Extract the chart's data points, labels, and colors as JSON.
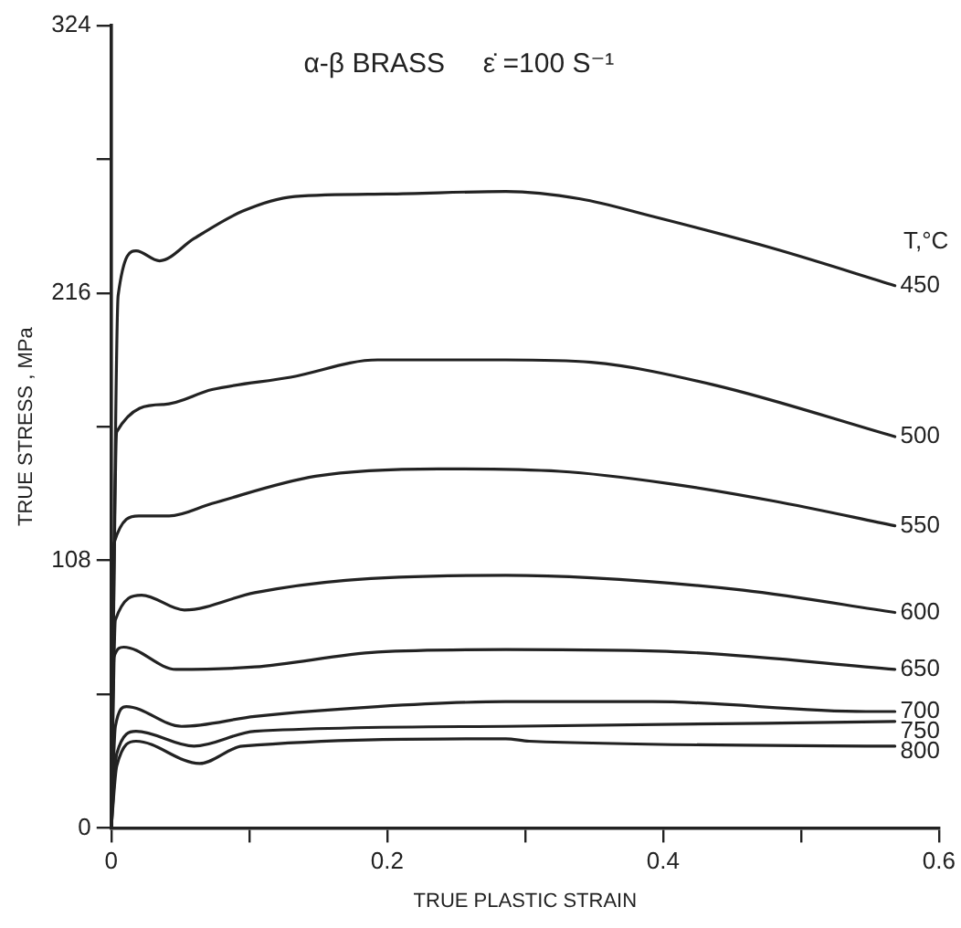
{
  "chart_data": {
    "type": "line",
    "title": "α-β BRASS     ε̇ =100 S⁻¹",
    "xlabel": "TRUE PLASTIC STRAIN",
    "ylabel": "TRUE STRESS , MPa",
    "legend_title": "T,°C",
    "xlim": [
      0,
      0.6
    ],
    "ylim": [
      0,
      324
    ],
    "xticks": [
      0,
      {
        "value": 0.1,
        "label": null
      },
      0.2,
      {
        "value": 0.3,
        "label": null
      },
      0.4,
      {
        "value": 0.5,
        "label": null
      },
      0.6
    ],
    "yticks": [
      0,
      {
        "value": 54,
        "label": null
      },
      108,
      {
        "value": 162,
        "label": null
      },
      216,
      {
        "value": 270,
        "label": null
      },
      324
    ],
    "grid": false,
    "legend": false,
    "marker": "none",
    "line_style": "solid",
    "series": [
      {
        "name": "450",
        "color": "#222222",
        "x": [
          0,
          0.005,
          0.018,
          0.035,
          0.06,
          0.095,
          0.133,
          0.2,
          0.286,
          0.34,
          0.392,
          0.48,
          0.568
        ],
        "values": [
          0,
          215,
          233,
          229,
          238,
          249,
          255,
          256,
          257,
          254,
          247,
          234,
          219
        ]
      },
      {
        "name": "500",
        "color": "#222222",
        "x": [
          0,
          0.004,
          0.038,
          0.073,
          0.13,
          0.193,
          0.286,
          0.348,
          0.436,
          0.568
        ],
        "values": [
          0,
          160,
          171,
          177,
          182,
          189,
          189,
          188,
          179,
          158
        ]
      },
      {
        "name": "550",
        "color": "#222222",
        "x": [
          0,
          0.002,
          0.02,
          0.042,
          0.073,
          0.148,
          0.237,
          0.325,
          0.405,
          0.48,
          0.568
        ],
        "values": [
          0,
          115,
          126,
          126,
          131,
          142,
          145,
          144,
          139,
          132,
          122
        ]
      },
      {
        "name": "600",
        "color": "#222222",
        "x": [
          0,
          0.003,
          0.022,
          0.053,
          0.104,
          0.17,
          0.286,
          0.348,
          0.458,
          0.568
        ],
        "values": [
          0,
          84,
          94,
          88,
          95,
          100,
          102,
          101,
          96,
          87
        ]
      },
      {
        "name": "650",
        "color": "#222222",
        "x": [
          0,
          0.002,
          0.009,
          0.047,
          0.104,
          0.193,
          0.286,
          0.414,
          0.568
        ],
        "values": [
          0,
          69,
          73,
          64,
          65,
          71,
          72,
          71,
          64
        ]
      },
      {
        "name": "700",
        "color": "#222222",
        "x": [
          0,
          0.003,
          0.011,
          0.051,
          0.104,
          0.193,
          0.286,
          0.392,
          0.547,
          0.568
        ],
        "values": [
          0,
          41,
          49,
          41,
          45,
          49,
          51,
          51,
          47,
          47
        ]
      },
      {
        "name": "750",
        "color": "#222222",
        "x": [
          0,
          0.004,
          0.018,
          0.06,
          0.104,
          0.286,
          0.568
        ],
        "values": [
          0,
          30,
          39,
          33,
          39,
          41,
          43
        ]
      },
      {
        "name": "800",
        "color": "#222222",
        "x": [
          0,
          0.004,
          0.018,
          0.064,
          0.095,
          0.286,
          0.303,
          0.568
        ],
        "values": [
          0,
          25,
          35,
          26,
          33,
          36,
          35,
          33
        ]
      }
    ]
  }
}
